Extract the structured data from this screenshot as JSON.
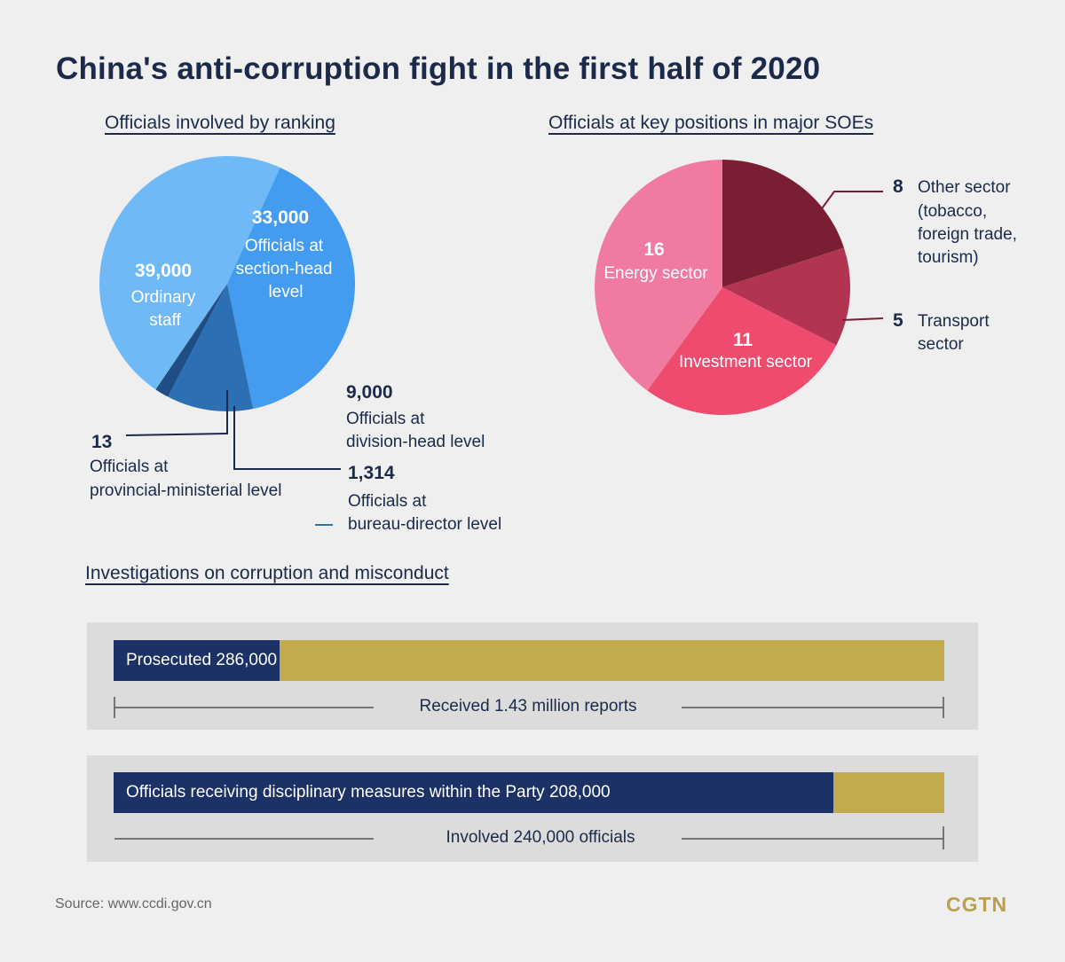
{
  "title": "China's anti-corruption fight in the first half of 2020",
  "colors": {
    "navy": "#1c3266",
    "gold": "#c2aa4f",
    "background": "#efefef",
    "panel": "#dcdcdc"
  },
  "chart_data": [
    {
      "type": "pie",
      "title": "Officials involved by ranking",
      "slices": [
        {
          "value": "39,000",
          "number": 39000,
          "label": "Ordinary staff",
          "color": "#6fb9f6"
        },
        {
          "value": "33,000",
          "number": 33000,
          "label": "Officials at section-head level",
          "color": "#449cf0"
        },
        {
          "value": "9,000",
          "number": 9000,
          "label": "Officials at division-head level",
          "color": "#2c6fb3"
        },
        {
          "value": "1,314",
          "number": 1314,
          "label": "Officials at bureau-director level",
          "color": "#1f4d85"
        },
        {
          "value": "13",
          "number": 13,
          "label": "Officials at provincial-ministerial level",
          "color": "#163a66"
        }
      ]
    },
    {
      "type": "pie",
      "title": "Officials at key positions in major SOEs",
      "slices": [
        {
          "value": "8",
          "number": 8,
          "label": "Other sector (tobacco, foreign trade, tourism)",
          "color": "#7a1f33"
        },
        {
          "value": "5",
          "number": 5,
          "label": "Transport sector",
          "color": "#b13550"
        },
        {
          "value": "11",
          "number": 11,
          "label": "Investment sector",
          "color": "#ee4b6e"
        },
        {
          "value": "16",
          "number": 16,
          "label": "Energy sector",
          "color": "#f07aa0"
        }
      ]
    },
    {
      "type": "bar",
      "title": "Investigations on corruption and misconduct",
      "bars": [
        {
          "label": "Prosecuted 286,000",
          "value": 286000,
          "total": 1430000,
          "total_label": "Received 1.43 million reports"
        },
        {
          "label": "Officials receiving disciplinary measures within the Party 208,000",
          "value": 208000,
          "total": 240000,
          "total_label": "Involved 240,000 officials"
        }
      ]
    }
  ],
  "source": "Source: www.ccdi.gov.cn",
  "brand": "CGTN"
}
